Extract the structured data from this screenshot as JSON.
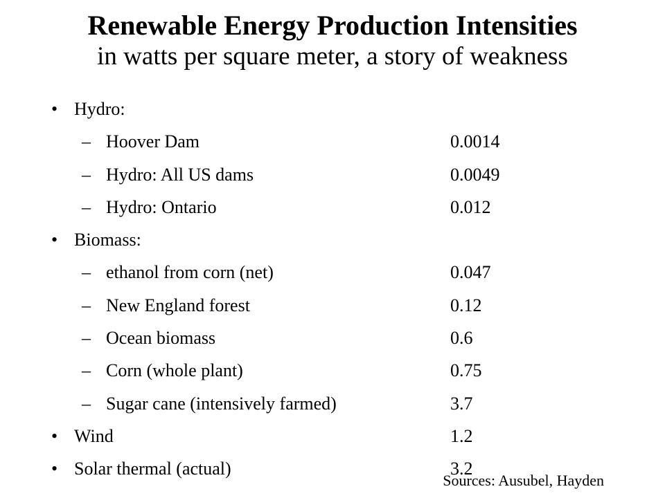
{
  "slide": {
    "title": "Renewable Energy Production Intensities",
    "subtitle": "in watts per square meter, a story of weakness",
    "bullet_glyph": "•",
    "dash_glyph": "–",
    "items": [
      {
        "label": "Hydro:",
        "value": ""
      },
      {
        "label": "Hoover Dam",
        "value": "0.0014"
      },
      {
        "label": "Hydro: All US dams",
        "value": "0.0049"
      },
      {
        "label": "Hydro: Ontario",
        "value": "0.012"
      },
      {
        "label": "Biomass:",
        "value": ""
      },
      {
        "label": "ethanol from corn (net)",
        "value": "0.047"
      },
      {
        "label": "New England forest",
        "value": "0.12"
      },
      {
        "label": "Ocean biomass",
        "value": "0.6"
      },
      {
        "label": "Corn (whole plant)",
        "value": "0.75"
      },
      {
        "label": "Sugar cane (intensively farmed)",
        "value": "3.7"
      },
      {
        "label": "Wind",
        "value": "1.2"
      },
      {
        "label": "Solar thermal (actual)",
        "value": "3.2"
      }
    ],
    "sources": "Sources: Ausubel, Hayden"
  }
}
